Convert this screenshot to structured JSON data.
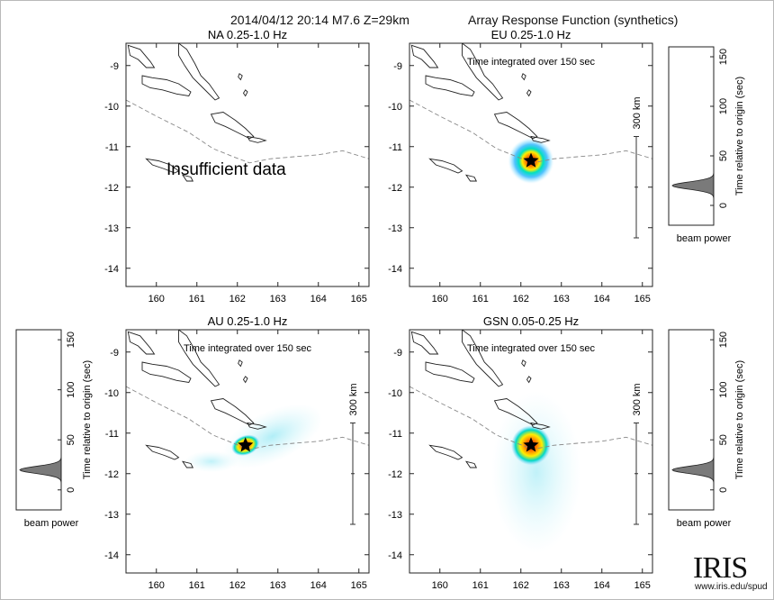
{
  "header": {
    "event": "2014/04/12 20:14  M7.6  Z=29km",
    "method": "Array Response Function (synthetics)"
  },
  "map": {
    "x_ticks": [
      "160",
      "161",
      "162",
      "163",
      "164",
      "165"
    ],
    "y_ticks": [
      "-9",
      "-10",
      "-11",
      "-12",
      "-13",
      "-14"
    ],
    "lon_range": [
      159.25,
      165.25
    ],
    "lat_range": [
      -14.45,
      -8.45
    ],
    "scale_label": "300 km"
  },
  "panels": [
    {
      "id": "NA",
      "title": "NA  0.25-1.0 Hz",
      "note": "",
      "message": "Insufficient data",
      "has_scale": false,
      "star": null
    },
    {
      "id": "EU",
      "title": "EU  0.25-1.0 Hz",
      "note": "Time integrated over 150 sec",
      "message": "",
      "has_scale": true,
      "star": {
        "lon": 162.25,
        "lat": -11.35
      }
    },
    {
      "id": "AU",
      "title": "AU  0.25-1.0 Hz",
      "note": "Time integrated over 150 sec",
      "message": "",
      "has_scale": true,
      "star": {
        "lon": 162.2,
        "lat": -11.3
      }
    },
    {
      "id": "GSN",
      "title": "GSN  0.05-0.25 Hz",
      "note": "Time integrated over 150 sec",
      "message": "",
      "has_scale": true,
      "star": {
        "lon": 162.25,
        "lat": -11.3
      }
    }
  ],
  "beam_power": {
    "y_ticks": [
      "0",
      "50",
      "100",
      "150"
    ],
    "ylabel": "Time relative to origin (sec)",
    "xlabel": "beam power",
    "y_range": [
      -20,
      160
    ],
    "peak_time": 20
  },
  "logo": {
    "name": "IRIS",
    "url": "www.iris.edu/spud"
  }
}
